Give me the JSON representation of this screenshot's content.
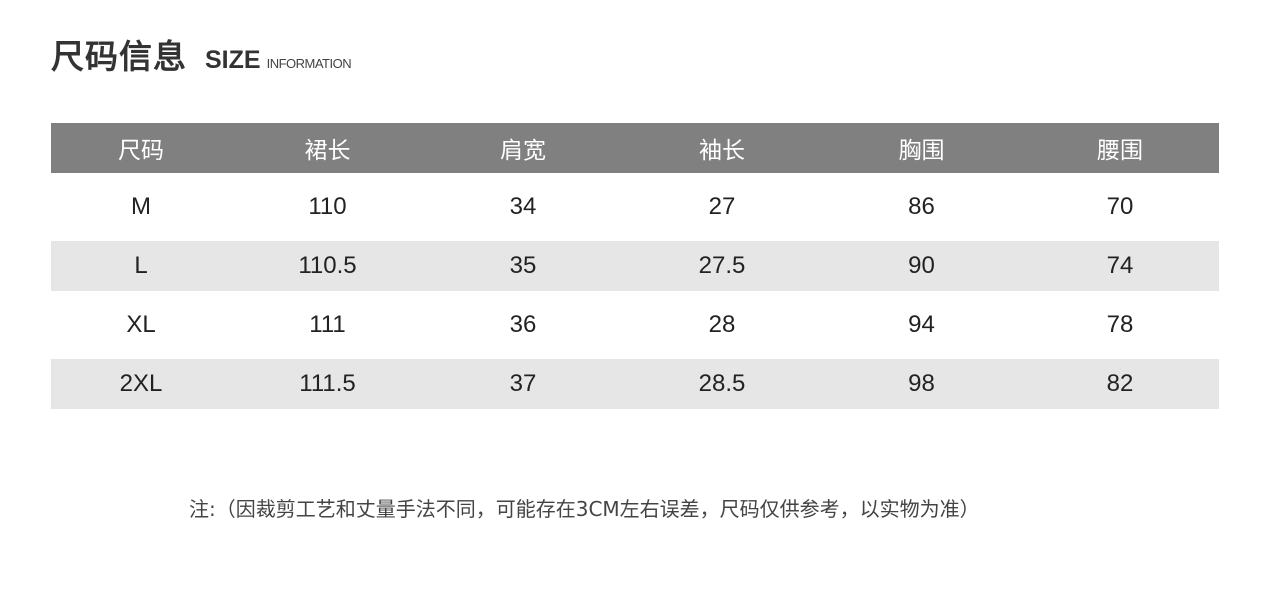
{
  "title": {
    "zh": "尺码信息",
    "en": "SIZE",
    "en_small": "INFORMATION"
  },
  "table": {
    "headers": [
      "尺码",
      "裙长",
      "肩宽",
      "袖长",
      "胸围",
      "腰围"
    ],
    "rows": [
      [
        "M",
        "110",
        "34",
        "27",
        "86",
        "70"
      ],
      [
        "L",
        "110.5",
        "35",
        "27.5",
        "90",
        "74"
      ],
      [
        "XL",
        "111",
        "36",
        "28",
        "94",
        "78"
      ],
      [
        "2XL",
        "111.5",
        "37",
        "28.5",
        "98",
        "82"
      ]
    ]
  },
  "note": "注:（因裁剪工艺和丈量手法不同，可能存在3CM左右误差，尺码仅供参考，以实物为准）",
  "colors": {
    "header_bg": "#808080",
    "alt_row_bg": "#e6e6e6"
  }
}
